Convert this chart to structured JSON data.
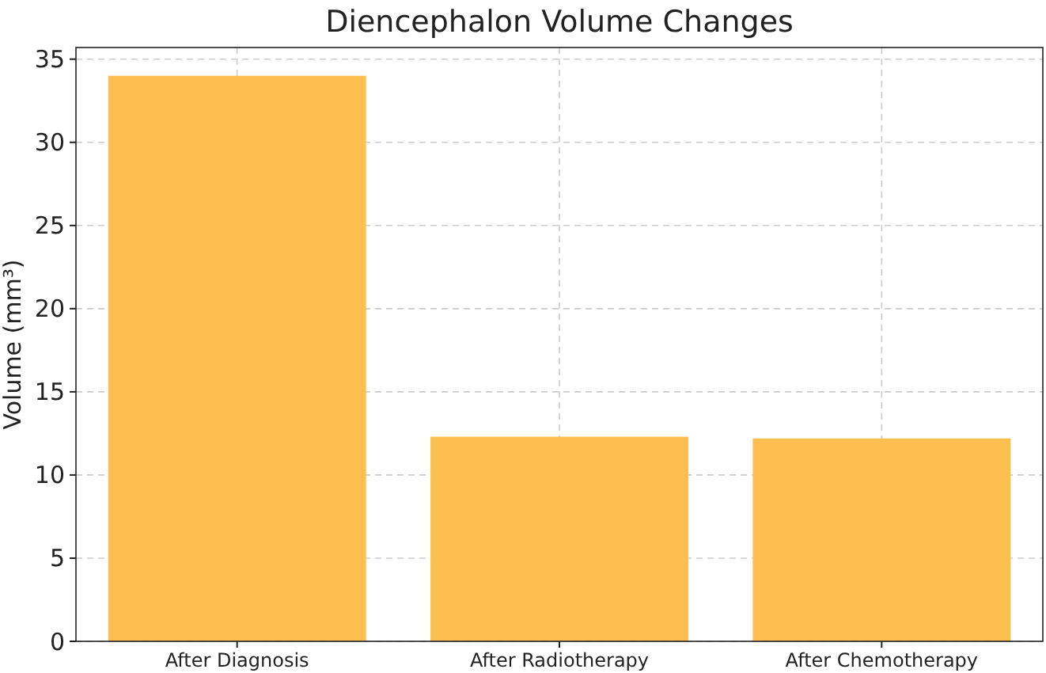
{
  "chart_data": {
    "type": "bar",
    "title": "Diencephalon Volume Changes",
    "ylabel": "Volume (mm³)",
    "categories": [
      "After Diagnosis",
      "After Radiotherapy",
      "After Chemotherapy"
    ],
    "values": [
      34,
      12.3,
      12.2
    ],
    "color": "#fdbf4f",
    "ylim": [
      0,
      35.7
    ],
    "yticks": [
      0,
      5,
      10,
      15,
      20,
      25,
      30,
      35
    ],
    "grid": true
  }
}
